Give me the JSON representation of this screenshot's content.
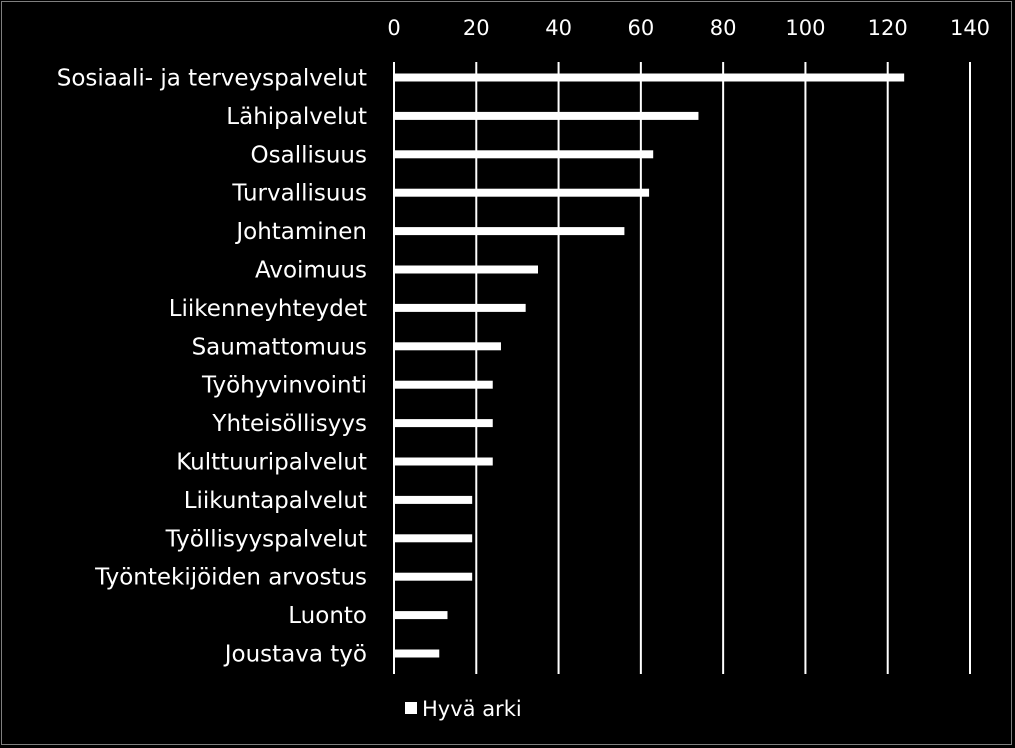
{
  "chart_data": {
    "type": "bar",
    "orientation": "horizontal",
    "categories": [
      "Sosiaali- ja terveyspalvelut",
      "Lähipalvelut",
      "Osallisuus",
      "Turvallisuus",
      "Johtaminen",
      "Avoimuus",
      "Liikenneyhteydet",
      "Saumattomuus",
      "Työhyvinvointi",
      "Yhteisöllisyys",
      "Kulttuuripalvelut",
      "Liikuntapalvelut",
      "Työllisyyspalvelut",
      "Työntekijöiden arvostus",
      "Luonto",
      "Joustava työ"
    ],
    "series": [
      {
        "name": "Hyvä arki",
        "values": [
          124,
          74,
          63,
          62,
          56,
          35,
          32,
          26,
          24,
          24,
          24,
          19,
          19,
          19,
          13,
          11
        ]
      }
    ],
    "xlim": [
      0,
      140
    ],
    "xticks": [
      0,
      20,
      40,
      60,
      80,
      100,
      120,
      140
    ],
    "x_axis_position": "top",
    "grid": true,
    "legend": {
      "position": "bottom",
      "label": "Hyvä arki"
    },
    "colors": {
      "background": "#000000",
      "bars": "#ffffff",
      "grid": "#ffffff",
      "text": "#ffffff",
      "frame": "#7f7f7f"
    }
  }
}
